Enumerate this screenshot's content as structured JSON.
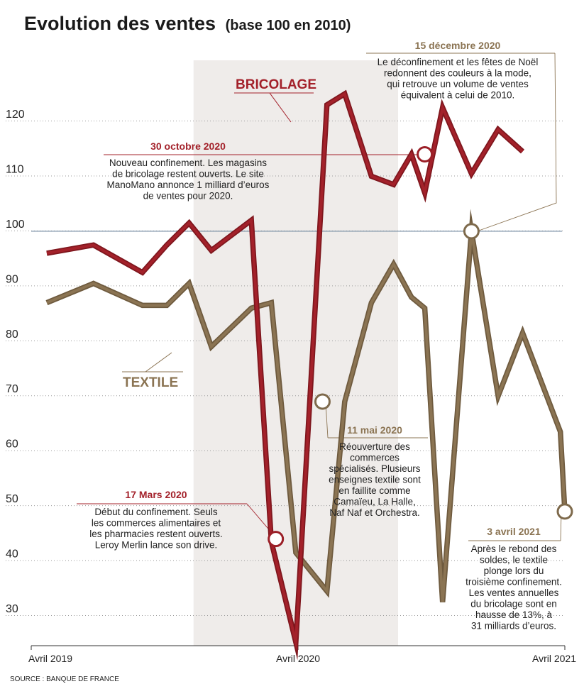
{
  "colors": {
    "bricolage": "#a3212a",
    "textile": "#8b7453",
    "base_line": "#7f93a8",
    "shade": "#efecea",
    "marker_stroke_red": "#9b1f27",
    "marker_stroke_brown": "#7e6a4c"
  },
  "chart_data": {
    "type": "line",
    "title": "Evolution des ventes",
    "subtitle": "(base 100 en 2010)",
    "source": "SOURCE : BANQUE DE FRANCE",
    "ylim": [
      25,
      125
    ],
    "yticks": [
      30,
      40,
      50,
      60,
      70,
      80,
      90,
      100,
      110,
      120
    ],
    "ytick_labels": [
      "30",
      "40",
      "50",
      "60",
      "70",
      "80",
      "90",
      "100",
      "110",
      "120"
    ],
    "xlim": [
      0,
      24
    ],
    "xticks": [
      0,
      12,
      24
    ],
    "xtick_labels": [
      "Avril 2019",
      "Avril 2020",
      "Avril 2021"
    ],
    "grid": "horizontal dotted",
    "reference_line": 100,
    "shaded_region": [
      7.3,
      16.5
    ],
    "x": [
      0.7,
      2.8,
      5.0,
      6.1,
      7.1,
      8.1,
      9.9,
      10.8,
      11.9,
      13.3,
      14.1,
      15.3,
      16.3,
      17.1,
      17.7,
      18.5,
      19.8,
      21.0,
      22.1,
      23.8
    ],
    "series": [
      {
        "name": "BRICOLAGE",
        "values": [
          96,
          97.5,
          92.5,
          97.5,
          101.5,
          96.5,
          102,
          43.5,
          25.2,
          123,
          125,
          110,
          108.5,
          114,
          107,
          122.5,
          110.5,
          118.5,
          114.5,
          null
        ]
      },
      {
        "name": "TEXTILE",
        "values": [
          87,
          90.5,
          86.5,
          86.5,
          90.5,
          79,
          86,
          87,
          41.5,
          34.5,
          69,
          87,
          94,
          88,
          86,
          32.5,
          100,
          70,
          81.5,
          63.5
        ]
      }
    ],
    "textile_tail": {
      "x": 24.0,
      "value": 49
    },
    "annotations": [
      {
        "date": "17 Mars 2020",
        "text": [
          "Début du confinement. Seuls",
          "les commerces alimentaires et",
          "les pharmacies restent ouverts.",
          "Leroy Merlin lance son drive."
        ],
        "series": "BRICOLAGE",
        "x": 11.0,
        "value": 44
      },
      {
        "date": "30 octobre 2020",
        "text": [
          "Nouveau confinement. Les magasins",
          "de bricolage restent ouverts. Le site",
          "ManoMano annonce 1 milliard d’euros",
          "de ventes pour 2020."
        ],
        "series": "BRICOLAGE",
        "x": 17.7,
        "value": 114
      },
      {
        "date": "15 décembre 2020",
        "text": [
          "Le déconfinement et les fêtes de Noël",
          "redonnent des couleurs à la mode,",
          "qui retrouve un volume de ventes",
          "équivalent à celui de 2010."
        ],
        "series": "TEXTILE",
        "x": 19.8,
        "value": 100
      },
      {
        "date": "11 mai 2020",
        "text": [
          "Réouverture des",
          "commerces",
          "spécialisés. Plusieurs",
          "enseignes textile sont",
          "en faillite comme",
          "Camaïeu, La Halle,",
          "Naf Naf et Orchestra."
        ],
        "series": "TEXTILE",
        "x": 13.1,
        "value": 69
      },
      {
        "date": "3 avril 2021",
        "text": [
          "Après le rebond des",
          "soldes, le textile",
          "plonge lors du",
          "troisième confinement.",
          "Les ventes annuelles",
          "du bricolage sont en",
          "hausse de 13%, à",
          "31 milliards d’euros."
        ],
        "series": "TEXTILE",
        "x": 24.0,
        "value": 49
      }
    ]
  }
}
